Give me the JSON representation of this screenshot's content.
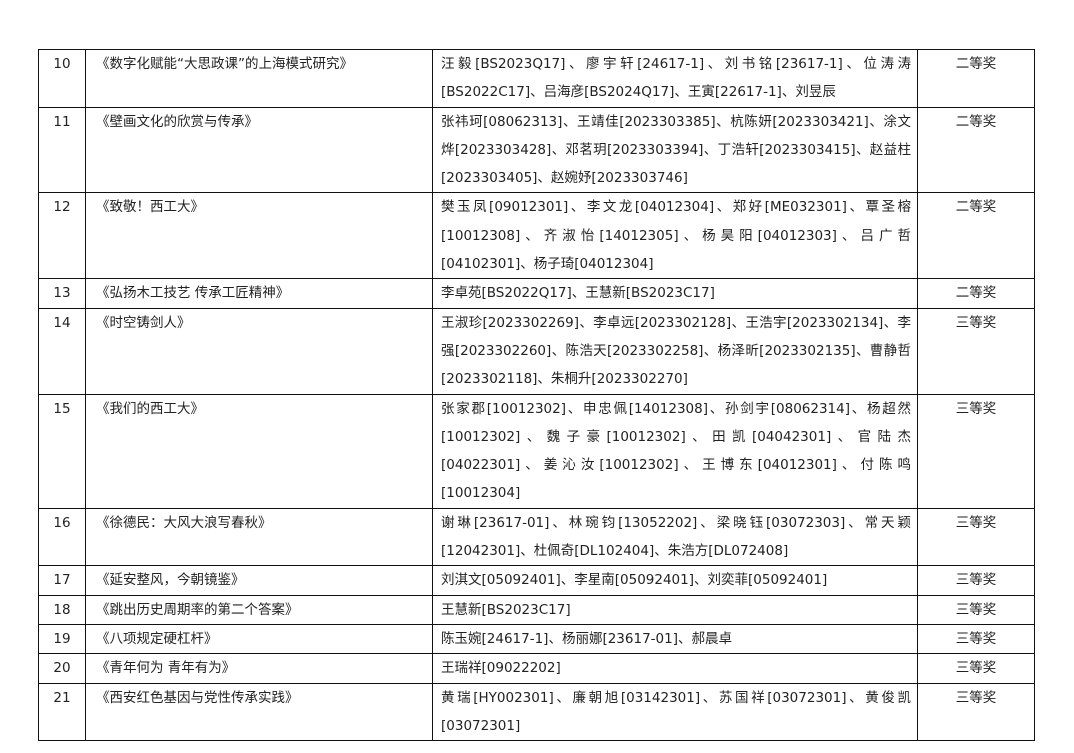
{
  "rows": [
    {
      "num": "10",
      "title": "《数字化赋能“大思政课”的上海模式研究》",
      "names": "汪毅[BS2023Q17]、廖宇轩[24617-1]、刘书铭[23617-1]、位涛涛[BS2022C17]、吕海彦[BS2024Q17]、王寅[22617-1]、刘昱辰",
      "award": "二等奖"
    },
    {
      "num": "11",
      "title": "《壁画文化的欣赏与传承》",
      "names": "张祎珂[08062313]、王靖佳[2023303385]、杭陈妍[2023303421]、涂文烨[2023303428]、邓茗玥[2023303394]、丁浩轩[2023303415]、赵益柱[2023303405]、赵婉妤[2023303746]",
      "award": "二等奖"
    },
    {
      "num": "12",
      "title": "《致敬！西工大》",
      "names": "樊玉凤[09012301]、李文龙[04012304]、郑好[ME032301]、覃圣榕[10012308]、齐淑怡[14012305]、杨昊阳[04012303]、吕广哲[04102301]、杨子琦[04012304]",
      "award": "二等奖"
    },
    {
      "num": "13",
      "title": "《弘扬木工技艺 传承工匠精神》",
      "names": "李卓苑[BS2022Q17]、王慧新[BS2023C17]",
      "award": "二等奖"
    },
    {
      "num": "14",
      "title": "《时空铸剑人》",
      "names": "王淑珍[2023302269]、李卓远[2023302128]、王浩宇[2023302134]、李强[2023302260]、陈浩天[2023302258]、杨泽昕[2023302135]、曹静哲[2023302118]、朱桐升[2023302270]",
      "award": "三等奖"
    },
    {
      "num": "15",
      "title": "《我们的西工大》",
      "names": "张家郡[10012302]、申忠佩[14012308]、孙剑宇[08062314]、杨超然[10012302]、魏子豪[10012302]、田凯[04042301]、官陆杰[04022301]、姜沁汝[10012302]、王博东[04012301]、付陈鸣[10012304]",
      "award": "三等奖"
    },
    {
      "num": "16",
      "title": "《徐德民：大风大浪写春秋》",
      "names": "谢琳[23617-01]、林琬钧[13052202]、梁晓钰[03072303]、常天颖[12042301]、杜佩奇[DL102404]、朱浩方[DL072408]",
      "award": "三等奖"
    },
    {
      "num": "17",
      "title": "《延安整风，今朝镜鉴》",
      "names": "刘淇文[05092401]、李星南[05092401]、刘奕菲[05092401]",
      "award": "三等奖"
    },
    {
      "num": "18",
      "title": "《跳出历史周期率的第二个答案》",
      "names": "王慧新[BS2023C17]",
      "award": "三等奖"
    },
    {
      "num": "19",
      "title": "《八项规定硬杠杆》",
      "names": "陈玉婉[24617-1]、杨丽娜[23617-01]、郝晨卓",
      "award": "三等奖"
    },
    {
      "num": "20",
      "title": "《青年何为 青年有为》",
      "names": "王瑞祥[09022202]",
      "award": "三等奖"
    },
    {
      "num": "21",
      "title": "《西安红色基因与党性传承实践》",
      "names": "黄瑞[HY002301]、廉朝旭[03142301]、苏国祥[03072301]、黄俊凯[03072301]",
      "award": "三等奖"
    }
  ]
}
